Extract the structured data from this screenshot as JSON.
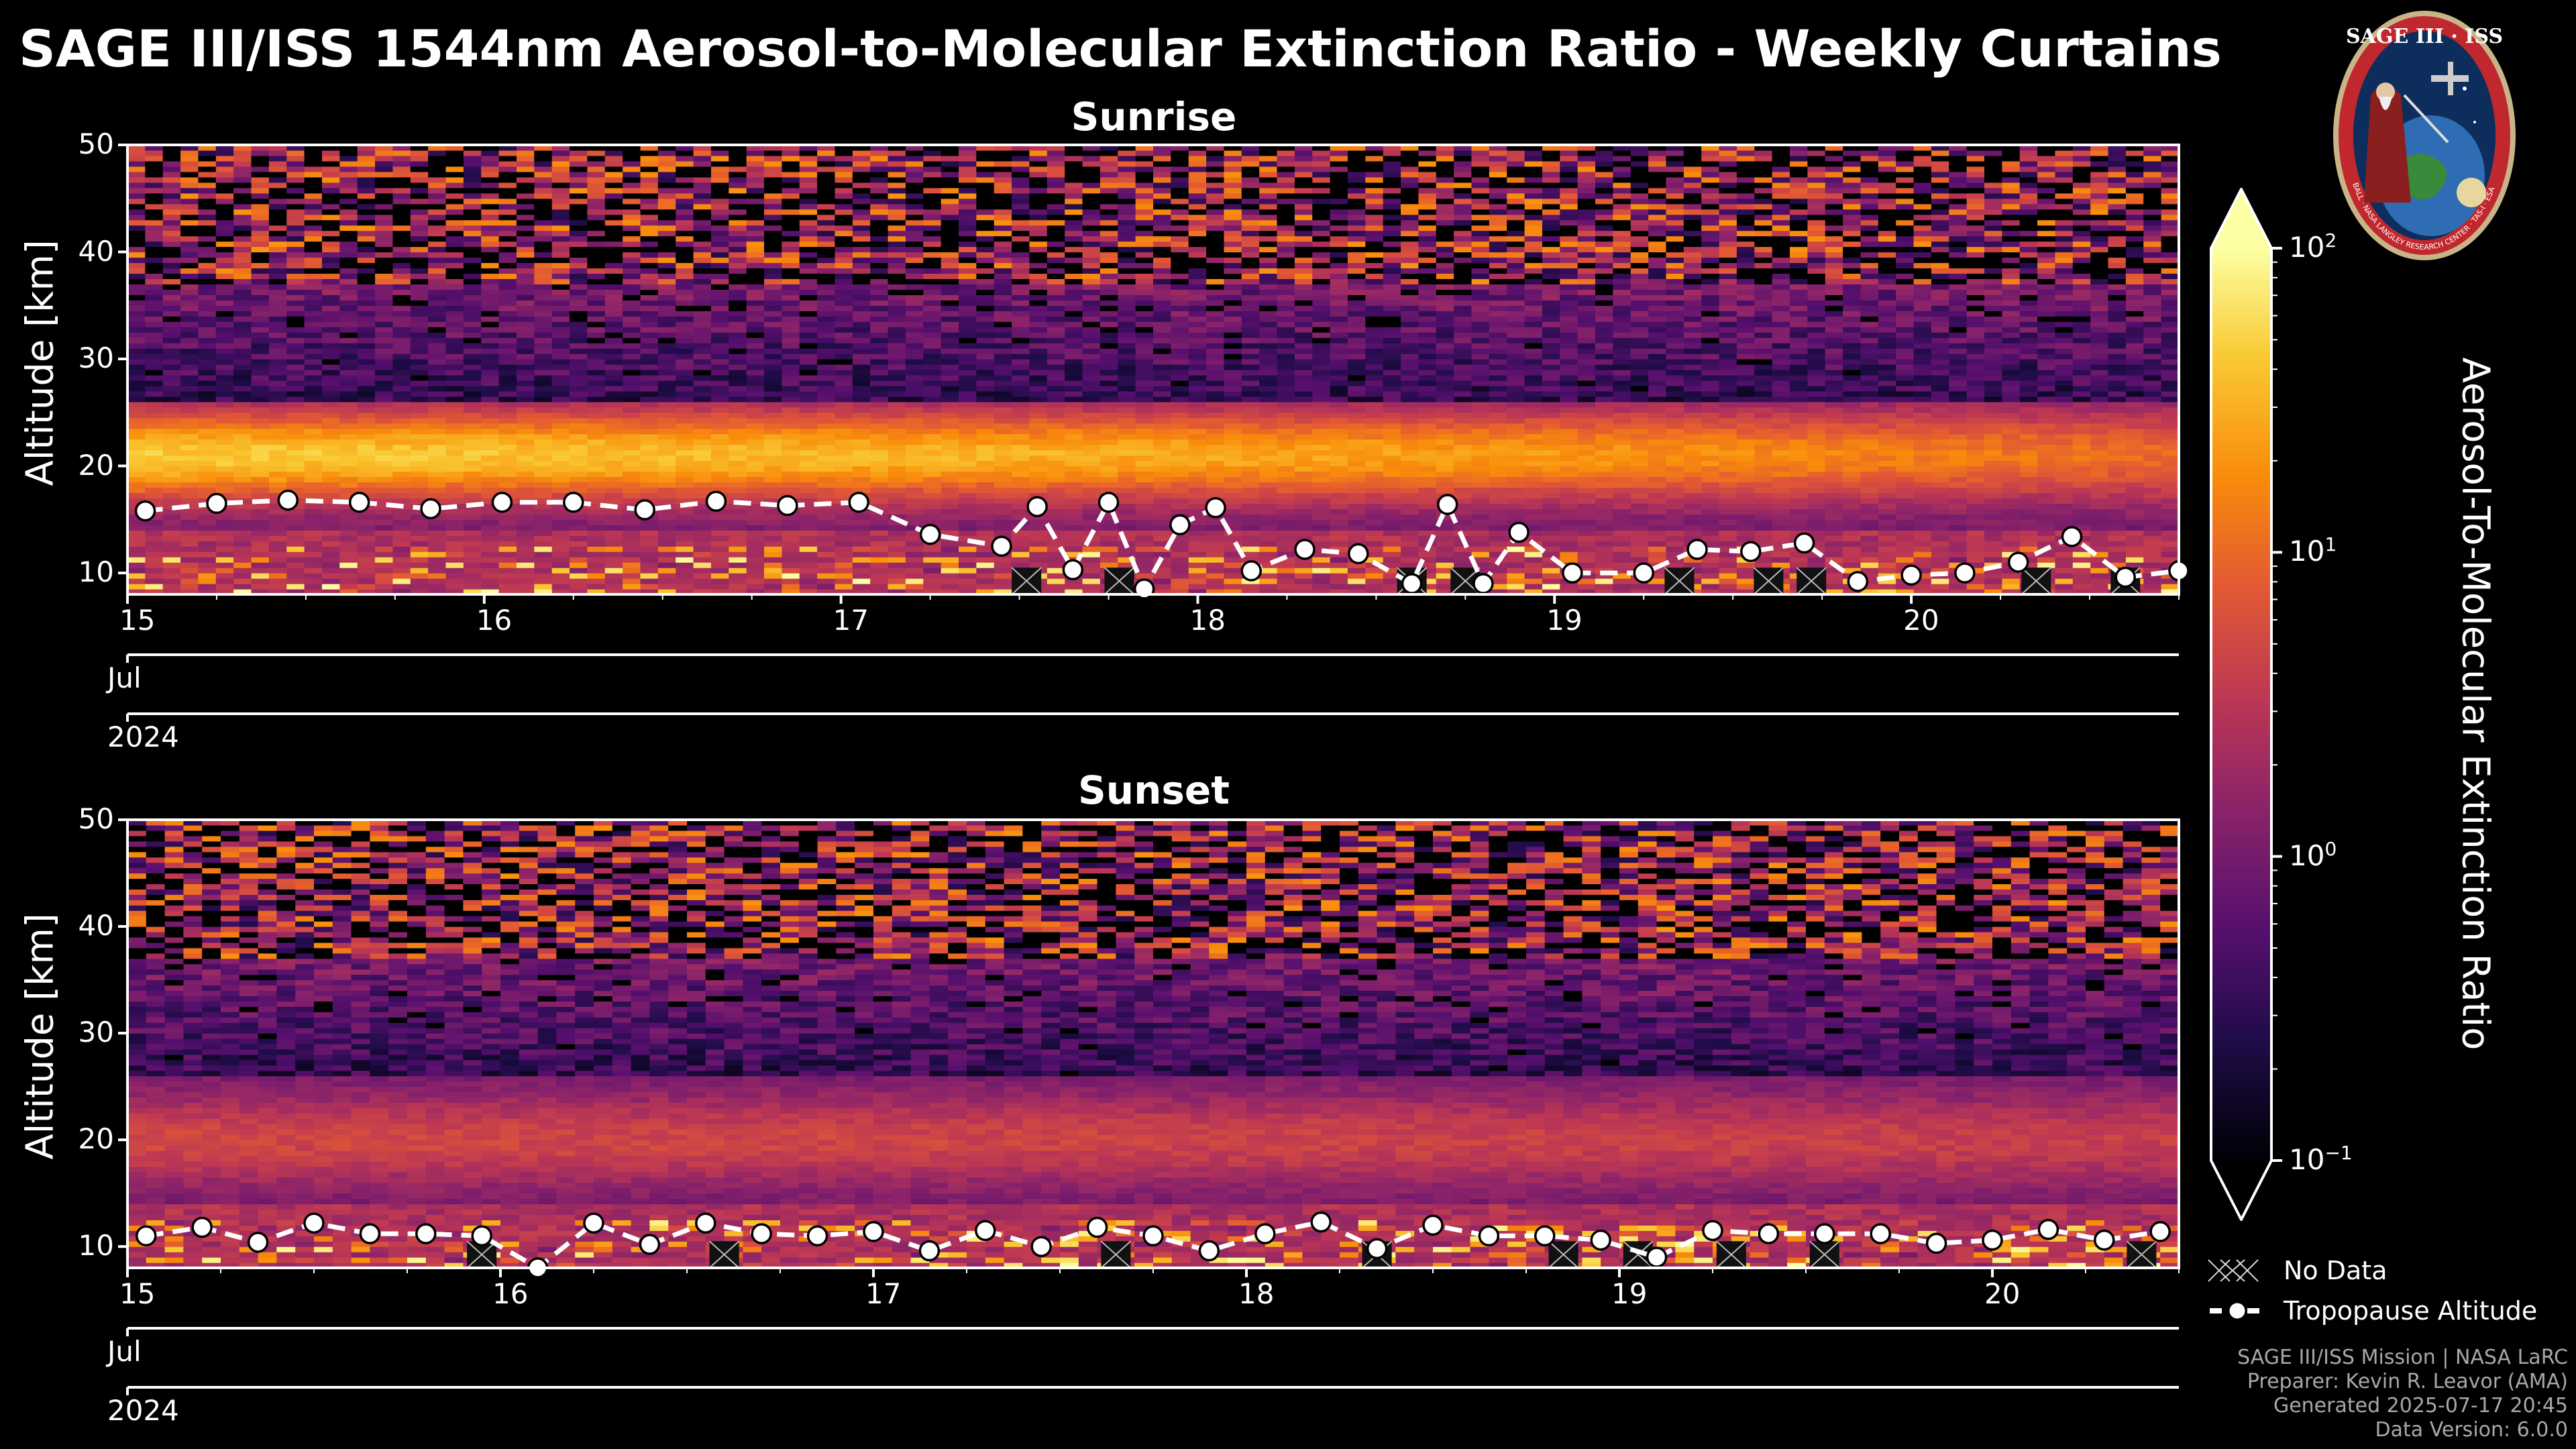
{
  "title": "SAGE III/ISS 1544nm Aerosol-to-Molecular Extinction Ratio - Weekly Curtains",
  "logo": {
    "text": "SAGE III · ISS",
    "ring_text": "BALL · NASA LANGLEY RESEARCH CENTER · TAS-I · ESA"
  },
  "colors": {
    "background": "#000000",
    "axes": "#ffffff",
    "tropopause_marker": "#ffffff",
    "credit_text": "#a8a8a8"
  },
  "chart_data": [
    {
      "type": "heatmap",
      "title": "Sunrise",
      "ylabel": "Altitude [km]",
      "ylim": [
        8,
        50
      ],
      "yticks": [
        "10",
        "20",
        "30",
        "40",
        "50"
      ],
      "xlim": [
        15.0,
        20.75
      ],
      "xticks": [
        15,
        16,
        17,
        18,
        19,
        20
      ],
      "xtick_labels": [
        "15",
        "16",
        "17",
        "18",
        "19",
        "20"
      ],
      "month_label": "Jul",
      "year_label": "2024",
      "profile_count": 116,
      "aerosol_layer": {
        "center_km": 21,
        "peak_ratio_start": 45,
        "peak_ratio_end": 10
      },
      "tropopause_series": {
        "name": "Tropopause Altitude",
        "days": [
          15.05,
          15.25,
          15.45,
          15.65,
          15.85,
          16.05,
          16.25,
          16.45,
          16.65,
          16.85,
          17.05,
          17.25,
          17.45,
          17.55,
          17.65,
          17.75,
          17.85,
          17.95,
          18.05,
          18.15,
          18.3,
          18.45,
          18.6,
          18.7,
          18.8,
          18.9,
          19.05,
          19.25,
          19.4,
          19.55,
          19.7,
          19.85,
          20.0,
          20.15,
          20.3,
          20.45,
          20.6,
          20.75
        ],
        "values_km": [
          15.8,
          16.5,
          16.8,
          16.6,
          16.0,
          16.6,
          16.6,
          15.9,
          16.7,
          16.3,
          16.6,
          13.6,
          12.5,
          16.2,
          10.3,
          16.6,
          8.5,
          14.5,
          16.1,
          10.2,
          12.2,
          11.8,
          9.0,
          16.4,
          9.0,
          13.8,
          10.0,
          10.0,
          12.2,
          12.0,
          12.8,
          9.2,
          9.8,
          10.0,
          11.0,
          13.4,
          9.6,
          10.2
        ]
      },
      "no_data_days": [
        17.52,
        17.78,
        18.6,
        18.75,
        19.35,
        19.6,
        19.72,
        20.35,
        20.6
      ]
    },
    {
      "type": "heatmap",
      "title": "Sunset",
      "ylabel": "Altitude [km]",
      "ylim": [
        8,
        50
      ],
      "yticks": [
        "10",
        "20",
        "30",
        "40",
        "50"
      ],
      "xlim": [
        15.0,
        20.5
      ],
      "xticks": [
        15,
        16,
        17,
        18,
        19,
        20
      ],
      "xtick_labels": [
        "15",
        "16",
        "17",
        "18",
        "19",
        "20"
      ],
      "month_label": "Jul",
      "year_label": "2024",
      "profile_count": 110,
      "aerosol_layer": {
        "center_km": 20,
        "peak_ratio_start": 5,
        "peak_ratio_end": 4
      },
      "tropopause_series": {
        "name": "Tropopause Altitude",
        "days": [
          15.05,
          15.2,
          15.35,
          15.5,
          15.65,
          15.8,
          15.95,
          16.1,
          16.25,
          16.4,
          16.55,
          16.7,
          16.85,
          17.0,
          17.15,
          17.3,
          17.45,
          17.6,
          17.75,
          17.9,
          18.05,
          18.2,
          18.35,
          18.5,
          18.65,
          18.8,
          18.95,
          19.1,
          19.25,
          19.4,
          19.55,
          19.7,
          19.85,
          20.0,
          20.15,
          20.3,
          20.45
        ],
        "values_km": [
          11.0,
          11.8,
          10.4,
          12.2,
          11.2,
          11.2,
          11.0,
          7.6,
          12.2,
          10.2,
          12.2,
          11.2,
          11.0,
          11.4,
          9.6,
          11.5,
          10.0,
          11.8,
          11.0,
          9.6,
          11.2,
          12.3,
          9.8,
          12.0,
          11.0,
          11.0,
          10.6,
          9.0,
          11.5,
          11.2,
          11.2,
          11.2,
          10.3,
          10.6,
          11.6,
          10.6,
          11.4
        ]
      },
      "no_data_days": [
        15.95,
        16.6,
        17.65,
        18.35,
        18.85,
        19.05,
        19.3,
        19.55,
        20.4
      ]
    }
  ],
  "colorbar": {
    "label": "Aerosol-To-Molecular Extinction Ratio",
    "scale": "log",
    "range": [
      0.1,
      100
    ],
    "ticks": [
      {
        "value": 100,
        "base": "10",
        "exp": "2"
      },
      {
        "value": 10,
        "base": "10",
        "exp": "1"
      },
      {
        "value": 1,
        "base": "10",
        "exp": "0"
      },
      {
        "value": 0.1,
        "base": "10",
        "exp": "−1"
      }
    ],
    "colormap": "inferno",
    "extend": "both"
  },
  "legend": {
    "no_data": "No Data",
    "tropopause": "Tropopause Altitude"
  },
  "credits": [
    "SAGE III/ISS Mission | NASA LaRC",
    "Preparer: Kevin R. Leavor (AMA)",
    "Generated 2025-07-17 20:45",
    "Data Version: 6.0.0"
  ]
}
